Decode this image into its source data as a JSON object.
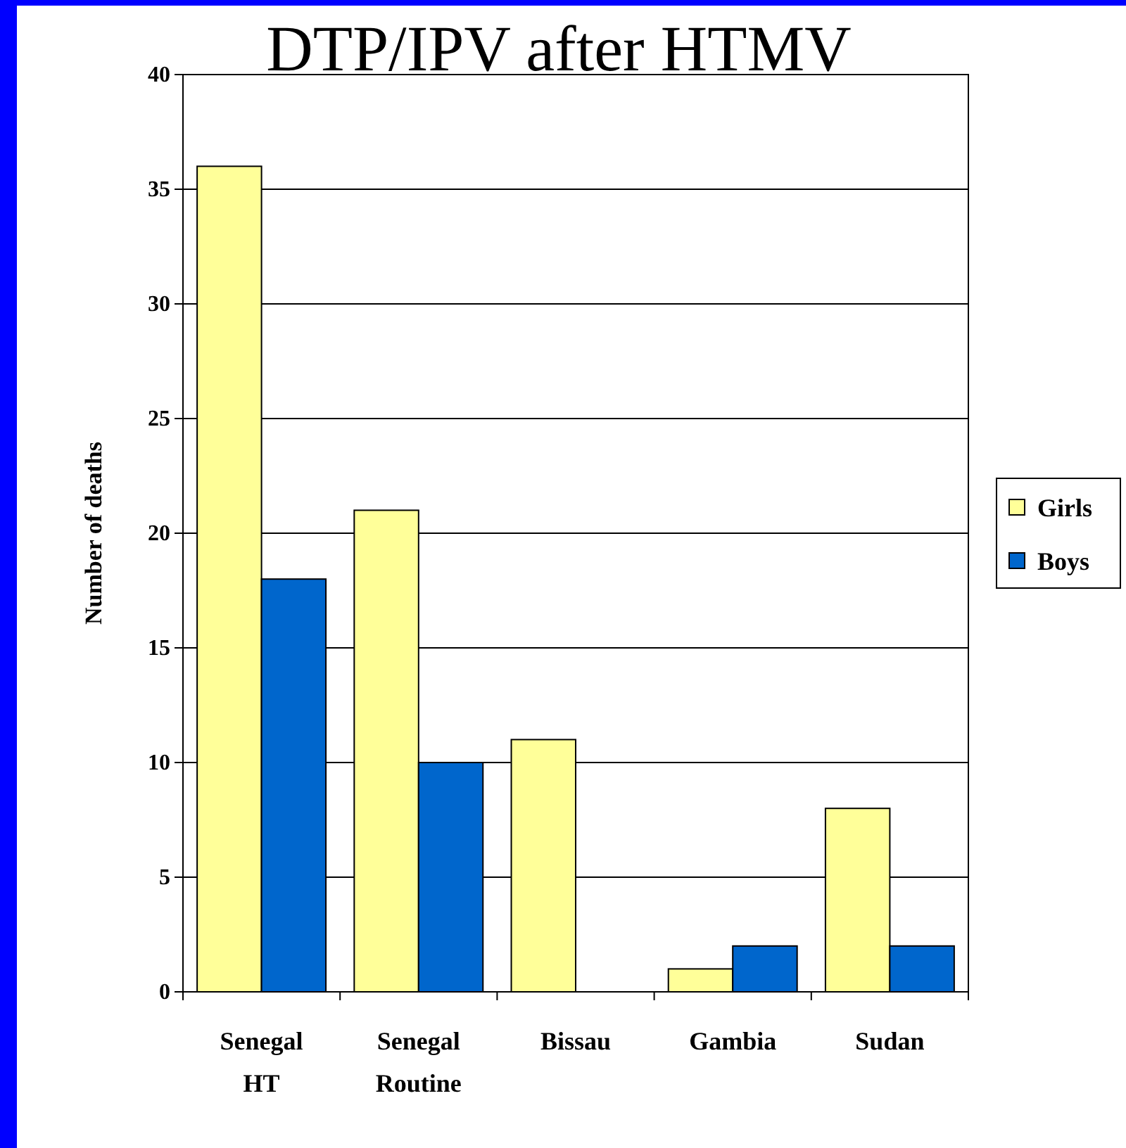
{
  "chart_data": {
    "type": "bar",
    "title": "DTP/IPV after HTMV",
    "ylabel": "Number of deaths",
    "categories": [
      "Senegal HT",
      "Senegal Routine",
      "Bissau",
      "Gambia",
      "Sudan"
    ],
    "series": [
      {
        "name": "Girls",
        "color": "#ffff99",
        "values": [
          36,
          21,
          11,
          1,
          8
        ]
      },
      {
        "name": "Boys",
        "color": "#0066cc",
        "values": [
          18,
          10,
          0,
          2,
          2
        ]
      }
    ],
    "ylim": [
      0,
      40
    ],
    "yticks": [
      0,
      5,
      10,
      15,
      20,
      25,
      30,
      35,
      40
    ],
    "grid": "y",
    "legend": "right"
  }
}
